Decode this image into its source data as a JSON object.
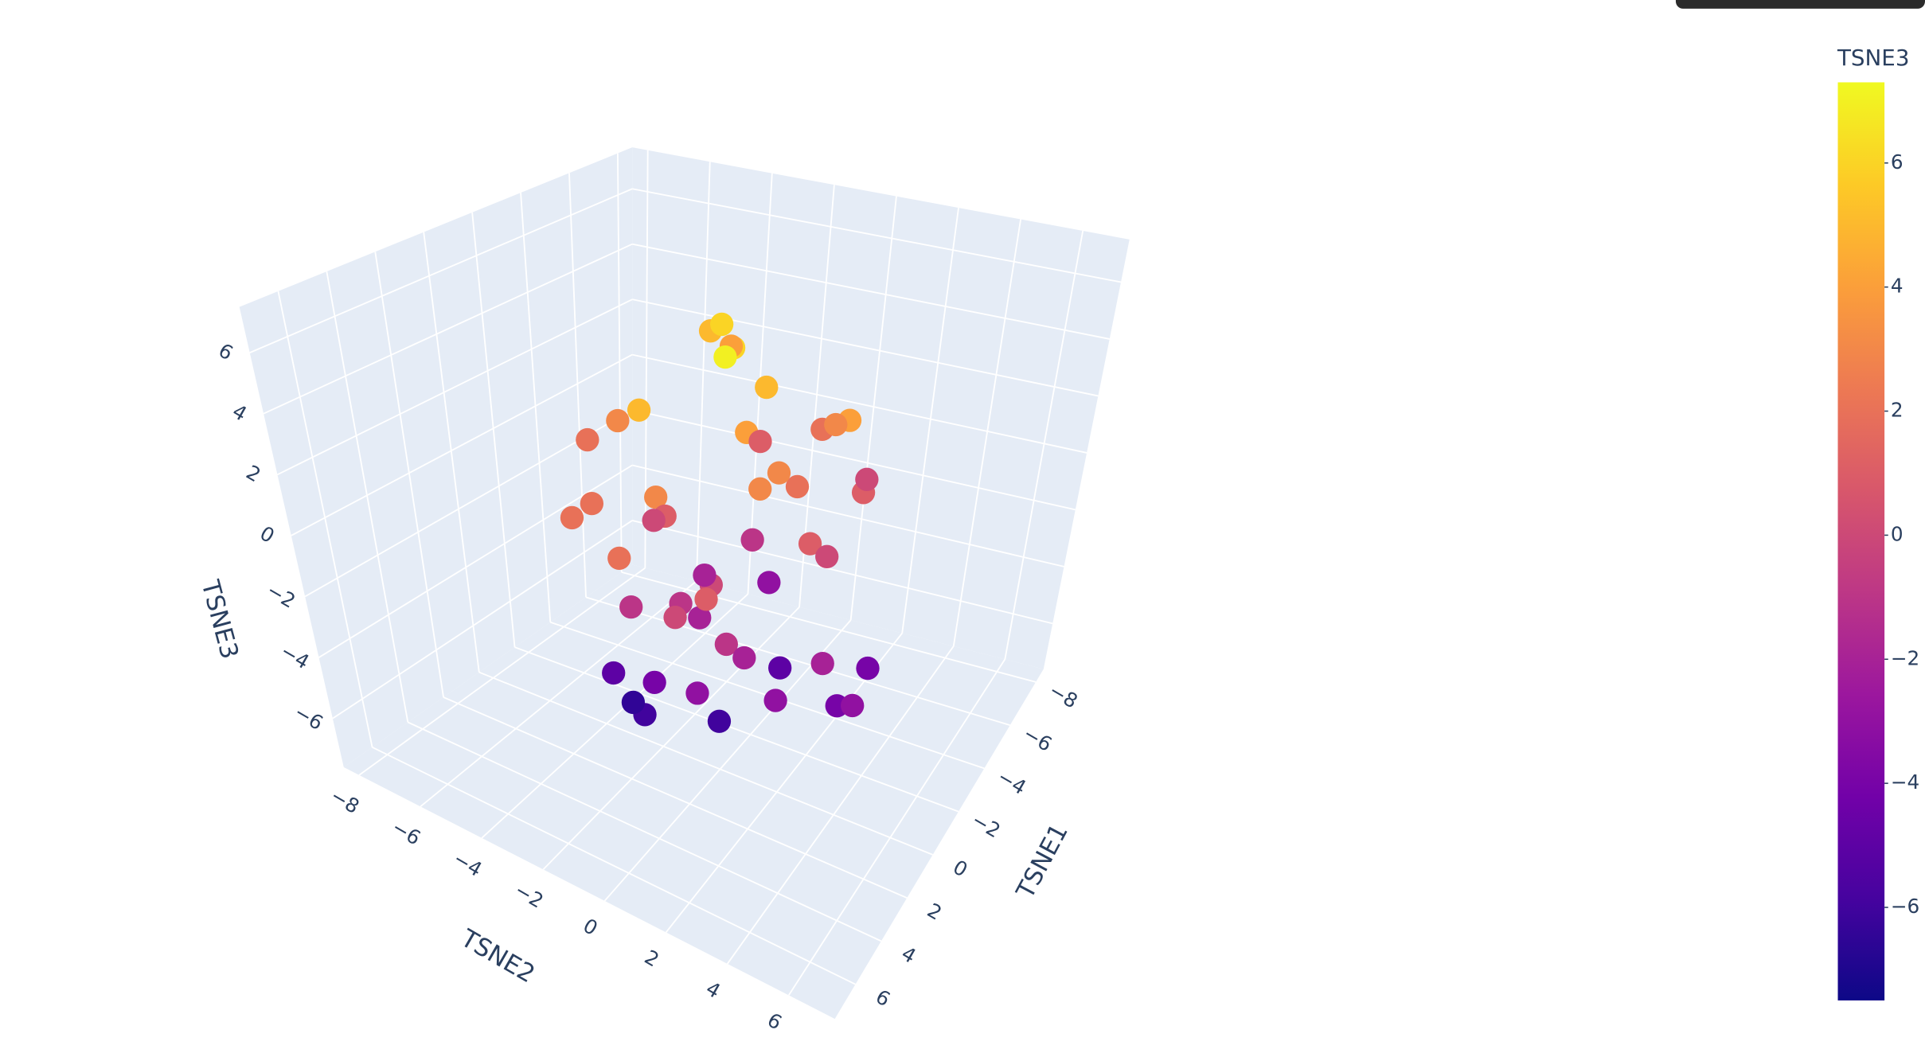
{
  "chart_data": {
    "type": "scatter3d",
    "xlabel": "TSNE1",
    "ylabel": "TSNE2",
    "zlabel": "TSNE3",
    "xlim": [
      -8.6,
      7.6
    ],
    "ylim": [
      -8.5,
      7.5
    ],
    "zlim": [
      -7.6,
      7.5
    ],
    "xticks": [
      {
        "value": -8,
        "label": "−8"
      },
      {
        "value": -6,
        "label": "−6"
      },
      {
        "value": -4,
        "label": "−4"
      },
      {
        "value": -2,
        "label": "−2"
      },
      0,
      2,
      4,
      6
    ],
    "yticks": [
      {
        "value": -8,
        "label": "−8"
      },
      {
        "value": -6,
        "label": "−6"
      },
      {
        "value": -4,
        "label": "−4"
      },
      {
        "value": -2,
        "label": "−2"
      },
      0,
      2,
      4,
      6
    ],
    "zticks": [
      {
        "value": -6,
        "label": "−6"
      },
      {
        "value": -4,
        "label": "−4"
      },
      {
        "value": -2,
        "label": "−2"
      },
      0,
      2,
      4,
      6
    ],
    "grid": true,
    "colorbar_title": "TSNE3",
    "clim": [
      -7.5,
      7.3
    ],
    "colorscale": [
      "#0d0887",
      "#46039f",
      "#7201a8",
      "#9c179e",
      "#bd3786",
      "#d8576b",
      "#ed7953",
      "#fb9f3a",
      "#fdca26",
      "#f0f921"
    ],
    "x": [
      -3,
      -1,
      0,
      2,
      1,
      -2,
      3,
      4,
      -4,
      0,
      1,
      -1,
      2,
      -3,
      3,
      0,
      -2,
      1,
      2,
      -1,
      0,
      3,
      -4,
      4,
      1,
      -2,
      0,
      2,
      -3,
      1,
      -1,
      3,
      0,
      2,
      -2,
      1,
      4,
      -3,
      0,
      -1,
      2,
      1,
      -4,
      3,
      0,
      -2,
      5,
      -5,
      1,
      0
    ],
    "y": [
      -2,
      0,
      1,
      -1,
      2,
      3,
      0,
      -2,
      1,
      -3,
      -1,
      2,
      1,
      3,
      2,
      -2,
      0,
      0,
      3,
      -1,
      4,
      1,
      -2,
      2,
      -3,
      1,
      0,
      -1,
      2,
      4,
      1,
      -2,
      3,
      0,
      -1,
      1,
      1,
      0,
      -4,
      3,
      2,
      -2,
      -1,
      -1,
      2,
      4,
      0,
      2,
      5,
      -3
    ],
    "z": [
      5,
      6,
      4,
      5,
      3,
      4,
      3,
      2,
      2,
      3,
      1,
      2,
      0,
      1,
      -1,
      0,
      -1,
      -2,
      -3,
      -2,
      -4,
      -3,
      4,
      1,
      -5,
      -5,
      -6,
      -4,
      3,
      -2,
      5,
      2,
      1,
      -1,
      6,
      7,
      0,
      -3,
      2,
      0,
      -2,
      -6,
      1,
      -1,
      3,
      -4,
      2,
      0,
      -3,
      -6.5
    ]
  }
}
